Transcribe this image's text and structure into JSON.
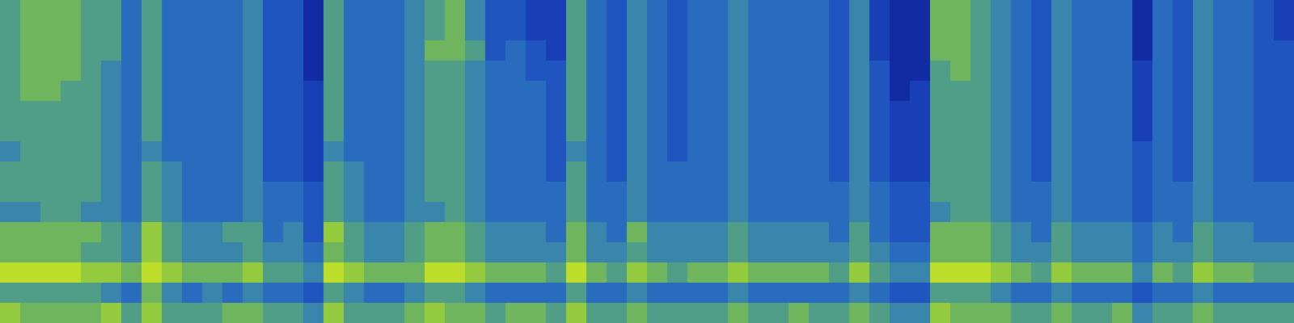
{
  "chart_data": {
    "type": "heatmap",
    "tick_labels": false,
    "zlim": [
      0,
      10
    ],
    "cells": [
      [
        6,
        6,
        6,
        6,
        6,
        6,
        6,
        5,
        6,
        6,
        5,
        7,
        7,
        9,
        6,
        8
      ],
      [
        7,
        7,
        7,
        7,
        7,
        6,
        6,
        6,
        6,
        6,
        5,
        7,
        7,
        9,
        6,
        7
      ],
      [
        7,
        7,
        7,
        7,
        7,
        6,
        6,
        6,
        6,
        6,
        6,
        7,
        7,
        9,
        6,
        7
      ],
      [
        7,
        7,
        7,
        7,
        6,
        6,
        6,
        6,
        6,
        6,
        6,
        7,
        7,
        9,
        6,
        7
      ],
      [
        6,
        6,
        6,
        6,
        6,
        6,
        6,
        6,
        6,
        6,
        5,
        7,
        6,
        8,
        6,
        7
      ],
      [
        6,
        6,
        6,
        5,
        5,
        5,
        5,
        5,
        5,
        5,
        5,
        6,
        6,
        8,
        5,
        8
      ],
      [
        4,
        4,
        4,
        4,
        4,
        4,
        4,
        4,
        4,
        4,
        4,
        5,
        5,
        7,
        4,
        6
      ],
      [
        6,
        6,
        6,
        6,
        6,
        6,
        6,
        5,
        6,
        6,
        6,
        8,
        8,
        9,
        7,
        8
      ],
      [
        4,
        4,
        4,
        4,
        4,
        4,
        4,
        4,
        5,
        5,
        5,
        6,
        6,
        8,
        5,
        6
      ],
      [
        4,
        4,
        4,
        4,
        4,
        4,
        4,
        4,
        4,
        4,
        4,
        5,
        5,
        7,
        4,
        6
      ],
      [
        4,
        4,
        4,
        4,
        4,
        4,
        4,
        4,
        4,
        4,
        4,
        5,
        5,
        7,
        5,
        6
      ],
      [
        4,
        4,
        4,
        4,
        4,
        4,
        4,
        4,
        4,
        4,
        4,
        6,
        5,
        7,
        4,
        7
      ],
      [
        5,
        5,
        5,
        5,
        5,
        5,
        5,
        5,
        5,
        5,
        5,
        6,
        6,
        8,
        5,
        7
      ],
      [
        3,
        3,
        3,
        3,
        3,
        3,
        3,
        3,
        3,
        4,
        4,
        4,
        5,
        6,
        4,
        6
      ],
      [
        3,
        3,
        3,
        3,
        3,
        3,
        3,
        3,
        3,
        4,
        4,
        5,
        5,
        6,
        4,
        6
      ],
      [
        1,
        1,
        1,
        1,
        2,
        2,
        2,
        2,
        2,
        3,
        3,
        3,
        4,
        5,
        3,
        5
      ],
      [
        6,
        6,
        6,
        6,
        6,
        6,
        6,
        5,
        6,
        6,
        6,
        8,
        7,
        9,
        6,
        8
      ],
      [
        4,
        4,
        4,
        4,
        4,
        4,
        4,
        4,
        5,
        5,
        5,
        6,
        6,
        8,
        5,
        6
      ],
      [
        4,
        4,
        4,
        4,
        4,
        4,
        4,
        4,
        4,
        4,
        4,
        5,
        5,
        7,
        4,
        6
      ],
      [
        4,
        4,
        4,
        4,
        4,
        4,
        4,
        4,
        4,
        4,
        4,
        5,
        5,
        7,
        4,
        6
      ],
      [
        5,
        5,
        5,
        5,
        5,
        5,
        5,
        5,
        5,
        5,
        5,
        6,
        6,
        7,
        5,
        7
      ],
      [
        6,
        6,
        7,
        6,
        6,
        6,
        6,
        6,
        6,
        6,
        5,
        7,
        7,
        9,
        6,
        8
      ],
      [
        7,
        7,
        7,
        6,
        6,
        6,
        6,
        6,
        6,
        6,
        6,
        7,
        7,
        9,
        6,
        7
      ],
      [
        5,
        5,
        6,
        5,
        5,
        5,
        5,
        5,
        5,
        5,
        5,
        6,
        6,
        8,
        5,
        7
      ],
      [
        3,
        3,
        3,
        4,
        4,
        4,
        4,
        4,
        4,
        4,
        4,
        5,
        5,
        7,
        4,
        6
      ],
      [
        3,
        3,
        4,
        4,
        4,
        4,
        4,
        4,
        4,
        4,
        4,
        5,
        5,
        7,
        4,
        7
      ],
      [
        2,
        2,
        3,
        3,
        4,
        4,
        4,
        4,
        4,
        4,
        4,
        5,
        5,
        7,
        4,
        7
      ],
      [
        2,
        2,
        2,
        3,
        3,
        3,
        3,
        3,
        3,
        4,
        4,
        4,
        5,
        6,
        4,
        6
      ],
      [
        6,
        6,
        6,
        6,
        6,
        6,
        6,
        5,
        6,
        6,
        6,
        7,
        7,
        9,
        6,
        8
      ],
      [
        4,
        4,
        4,
        4,
        4,
        4,
        4,
        4,
        4,
        4,
        4,
        5,
        5,
        7,
        4,
        6
      ],
      [
        3,
        3,
        3,
        3,
        3,
        3,
        3,
        3,
        3,
        4,
        4,
        4,
        5,
        6,
        4,
        6
      ],
      [
        5,
        5,
        5,
        5,
        5,
        5,
        5,
        5,
        5,
        5,
        5,
        7,
        6,
        8,
        5,
        7
      ],
      [
        4,
        4,
        4,
        4,
        4,
        4,
        4,
        4,
        4,
        4,
        4,
        5,
        5,
        7,
        4,
        6
      ],
      [
        3,
        3,
        3,
        3,
        3,
        3,
        3,
        3,
        4,
        4,
        4,
        5,
        5,
        6,
        4,
        6
      ],
      [
        4,
        4,
        4,
        4,
        4,
        4,
        4,
        4,
        4,
        4,
        4,
        5,
        5,
        7,
        4,
        6
      ],
      [
        4,
        4,
        4,
        4,
        4,
        4,
        4,
        4,
        4,
        4,
        4,
        5,
        5,
        7,
        4,
        6
      ],
      [
        5,
        5,
        5,
        5,
        5,
        5,
        5,
        5,
        5,
        5,
        5,
        6,
        6,
        8,
        5,
        7
      ],
      [
        4,
        4,
        4,
        4,
        4,
        4,
        4,
        4,
        4,
        4,
        4,
        5,
        5,
        7,
        4,
        6
      ],
      [
        4,
        4,
        4,
        4,
        4,
        4,
        4,
        4,
        4,
        4,
        4,
        5,
        5,
        7,
        4,
        6
      ],
      [
        4,
        4,
        4,
        4,
        4,
        4,
        4,
        4,
        4,
        4,
        4,
        5,
        5,
        7,
        4,
        7
      ],
      [
        4,
        4,
        4,
        4,
        4,
        4,
        4,
        4,
        4,
        4,
        4,
        5,
        5,
        7,
        4,
        6
      ],
      [
        3,
        3,
        3,
        3,
        3,
        3,
        3,
        3,
        3,
        4,
        4,
        4,
        5,
        6,
        4,
        6
      ],
      [
        5,
        5,
        5,
        5,
        5,
        5,
        5,
        5,
        5,
        5,
        5,
        6,
        6,
        8,
        5,
        7
      ],
      [
        2,
        2,
        2,
        3,
        3,
        3,
        3,
        3,
        3,
        4,
        4,
        4,
        5,
        6,
        4,
        6
      ],
      [
        1,
        1,
        1,
        1,
        1,
        2,
        2,
        2,
        2,
        3,
        3,
        3,
        4,
        5,
        3,
        5
      ],
      [
        1,
        1,
        1,
        1,
        2,
        2,
        2,
        2,
        2,
        3,
        3,
        3,
        4,
        5,
        3,
        5
      ],
      [
        7,
        7,
        7,
        6,
        6,
        6,
        6,
        6,
        6,
        6,
        5,
        7,
        7,
        9,
        6,
        8
      ],
      [
        7,
        7,
        7,
        7,
        6,
        6,
        6,
        6,
        6,
        6,
        6,
        7,
        7,
        9,
        6,
        7
      ],
      [
        6,
        6,
        6,
        6,
        6,
        6,
        6,
        6,
        6,
        6,
        6,
        7,
        7,
        9,
        6,
        7
      ],
      [
        5,
        5,
        5,
        5,
        5,
        5,
        5,
        5,
        5,
        5,
        5,
        6,
        6,
        8,
        5,
        7
      ],
      [
        4,
        4,
        4,
        4,
        4,
        4,
        4,
        4,
        4,
        4,
        4,
        5,
        5,
        7,
        4,
        6
      ],
      [
        3,
        3,
        3,
        3,
        3,
        3,
        3,
        3,
        3,
        4,
        4,
        4,
        5,
        6,
        4,
        6
      ],
      [
        5,
        5,
        5,
        5,
        5,
        5,
        5,
        5,
        5,
        5,
        5,
        6,
        6,
        8,
        5,
        7
      ],
      [
        4,
        4,
        4,
        4,
        4,
        4,
        4,
        4,
        4,
        4,
        4,
        5,
        5,
        7,
        4,
        6
      ],
      [
        4,
        4,
        4,
        4,
        4,
        4,
        4,
        4,
        4,
        4,
        4,
        5,
        5,
        7,
        4,
        6
      ],
      [
        4,
        4,
        4,
        4,
        4,
        4,
        4,
        4,
        4,
        4,
        4,
        5,
        5,
        7,
        4,
        7
      ],
      [
        1,
        1,
        1,
        2,
        2,
        2,
        2,
        3,
        3,
        3,
        3,
        4,
        4,
        5,
        3,
        5
      ],
      [
        4,
        4,
        4,
        4,
        4,
        4,
        4,
        4,
        4,
        4,
        4,
        5,
        5,
        7,
        4,
        6
      ],
      [
        3,
        3,
        3,
        3,
        3,
        3,
        3,
        3,
        3,
        4,
        4,
        4,
        5,
        6,
        4,
        6
      ],
      [
        5,
        5,
        5,
        5,
        5,
        5,
        5,
        5,
        5,
        5,
        5,
        6,
        6,
        8,
        5,
        7
      ],
      [
        4,
        4,
        4,
        4,
        4,
        4,
        4,
        4,
        4,
        4,
        4,
        5,
        5,
        7,
        4,
        6
      ],
      [
        4,
        4,
        4,
        4,
        4,
        4,
        4,
        4,
        4,
        4,
        4,
        5,
        5,
        7,
        4,
        6
      ],
      [
        3,
        3,
        3,
        3,
        3,
        3,
        3,
        3,
        3,
        4,
        4,
        4,
        5,
        6,
        4,
        6
      ],
      [
        2,
        2,
        3,
        3,
        3,
        3,
        3,
        3,
        3,
        4,
        4,
        4,
        5,
        6,
        4,
        6
      ]
    ]
  }
}
